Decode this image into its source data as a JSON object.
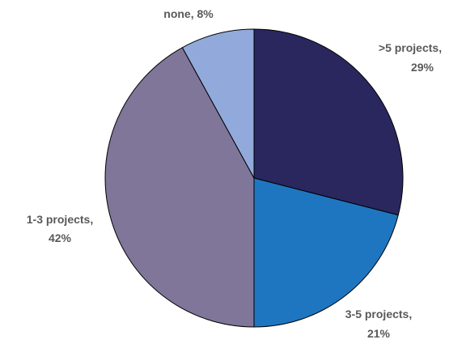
{
  "chart_data": {
    "type": "pie",
    "title": "",
    "start_angle_deg": 0,
    "direction": "clockwise",
    "slices": [
      {
        "label": ">5 projects",
        "value": 29,
        "text_line1": ">5 projects,",
        "text_line2": "29%",
        "color": "#2a275f"
      },
      {
        "label": "3-5 projects",
        "value": 21,
        "text_line1": "3-5 projects,",
        "text_line2": "21%",
        "color": "#1f76c0"
      },
      {
        "label": "1-3 projects",
        "value": 42,
        "text_line1": "1-3 projects,",
        "text_line2": "42%",
        "color": "#7f7699"
      },
      {
        "label": "none",
        "value": 8,
        "text_line1": "none, 8%",
        "text_line2": "",
        "color": "#92aadb"
      }
    ]
  }
}
